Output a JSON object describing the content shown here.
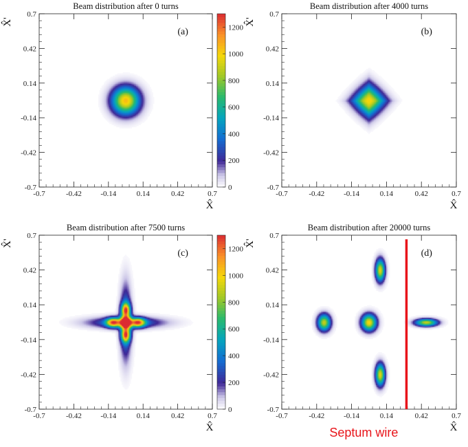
{
  "chart_data": [
    {
      "type": "heatmap",
      "panel": "(a)",
      "title_prefix": "Beam distribution after",
      "turns": "0",
      "title_suffix": "turns",
      "xlabel": "X̂",
      "ylabel": "X̂'",
      "xlim": [
        -0.7,
        0.7
      ],
      "ylim": [
        -0.7,
        0.7
      ],
      "xticks": [
        "-0.7",
        "-0.42",
        "-0.14",
        "0.14",
        "0.42",
        "0.7"
      ],
      "yticks": [
        "-0.7",
        "-0.42",
        "-0.14",
        "0.14",
        "0.42",
        "0.7"
      ],
      "colorbar": {
        "min": 0,
        "max": 1300,
        "ticks": [
          "0",
          "200",
          "400",
          "600",
          "800",
          "1000",
          "1200"
        ]
      },
      "clusters": [
        {
          "x": 0.0,
          "y": 0.0,
          "sx": 0.075,
          "sy": 0.075,
          "peak": 1050,
          "shape": "round"
        }
      ]
    },
    {
      "type": "heatmap",
      "panel": "(b)",
      "title_prefix": "Beam distribution after",
      "turns": "4000",
      "title_suffix": "turns",
      "xlabel": "X̂",
      "ylabel": "X̂'",
      "xlim": [
        -0.7,
        0.7
      ],
      "ylim": [
        -0.7,
        0.7
      ],
      "xticks": [
        "-0.7",
        "-0.42",
        "-0.14",
        "0.14",
        "0.42",
        "0.7"
      ],
      "yticks": [
        "-0.7",
        "-0.42",
        "-0.14",
        "0.14",
        "0.42",
        "0.7"
      ],
      "clusters": [
        {
          "x": 0.0,
          "y": 0.0,
          "sx": 0.09,
          "sy": 0.09,
          "peak": 1000,
          "shape": "diamond"
        }
      ]
    },
    {
      "type": "heatmap",
      "panel": "(c)",
      "title_prefix": "Beam distribution after",
      "turns": "7500",
      "title_suffix": "turns",
      "xlabel": "X̂",
      "ylabel": "X̂'",
      "xlim": [
        -0.7,
        0.7
      ],
      "ylim": [
        -0.7,
        0.7
      ],
      "xticks": [
        "-0.7",
        "-0.42",
        "-0.14",
        "0.14",
        "0.42",
        "0.7"
      ],
      "yticks": [
        "-0.7",
        "-0.42",
        "-0.14",
        "0.14",
        "0.42",
        "0.7"
      ],
      "colorbar": {
        "min": 0,
        "max": 1300,
        "ticks": [
          "0",
          "200",
          "400",
          "600",
          "800",
          "1000",
          "1200"
        ]
      },
      "clusters": [
        {
          "x": 0.0,
          "y": 0.0,
          "sx": 0.03,
          "sy": 0.03,
          "peak": 1050,
          "shape": "round"
        },
        {
          "x": 0.0,
          "y": 0.1,
          "sx": 0.025,
          "sy": 0.04,
          "peak": 950,
          "shape": "round"
        },
        {
          "x": 0.0,
          "y": -0.1,
          "sx": 0.025,
          "sy": 0.04,
          "peak": 950,
          "shape": "round"
        },
        {
          "x": 0.1,
          "y": 0.0,
          "sx": 0.04,
          "sy": 0.025,
          "peak": 950,
          "shape": "round"
        },
        {
          "x": -0.1,
          "y": 0.0,
          "sx": 0.04,
          "sy": 0.025,
          "peak": 950,
          "shape": "round"
        },
        {
          "x": 0.0,
          "y": 0.0,
          "sx": 0.2,
          "sy": 0.03,
          "peak": 450,
          "shape": "round"
        },
        {
          "x": 0.0,
          "y": 0.0,
          "sx": 0.03,
          "sy": 0.2,
          "peak": 450,
          "shape": "round"
        }
      ]
    },
    {
      "type": "heatmap",
      "panel": "(d)",
      "title_prefix": "Beam distribution after",
      "turns": "20000",
      "title_suffix": "turns",
      "xlabel": "X̂",
      "ylabel": "X̂'",
      "xlim": [
        -0.7,
        0.7
      ],
      "ylim": [
        -0.7,
        0.7
      ],
      "xticks": [
        "-0.7",
        "-0.42",
        "-0.14",
        "0.14",
        "0.42",
        "0.7"
      ],
      "yticks": [
        "-0.7",
        "-0.42",
        "-0.14",
        "0.14",
        "0.42",
        "0.7"
      ],
      "clusters": [
        {
          "x": 0.0,
          "y": 0.0,
          "sx": 0.04,
          "sy": 0.045,
          "peak": 1000,
          "shape": "round"
        },
        {
          "x": -0.36,
          "y": 0.0,
          "sx": 0.035,
          "sy": 0.045,
          "peak": 900,
          "shape": "round"
        },
        {
          "x": 0.09,
          "y": 0.42,
          "sx": 0.025,
          "sy": 0.06,
          "peak": 950,
          "shape": "round"
        },
        {
          "x": 0.09,
          "y": -0.42,
          "sx": 0.025,
          "sy": 0.06,
          "peak": 950,
          "shape": "round"
        },
        {
          "x": 0.46,
          "y": 0.0,
          "sx": 0.06,
          "sy": 0.02,
          "peak": 900,
          "shape": "round"
        }
      ],
      "septum": {
        "x": 0.3,
        "label": "Septum wire",
        "color": "#e8141a"
      }
    }
  ]
}
